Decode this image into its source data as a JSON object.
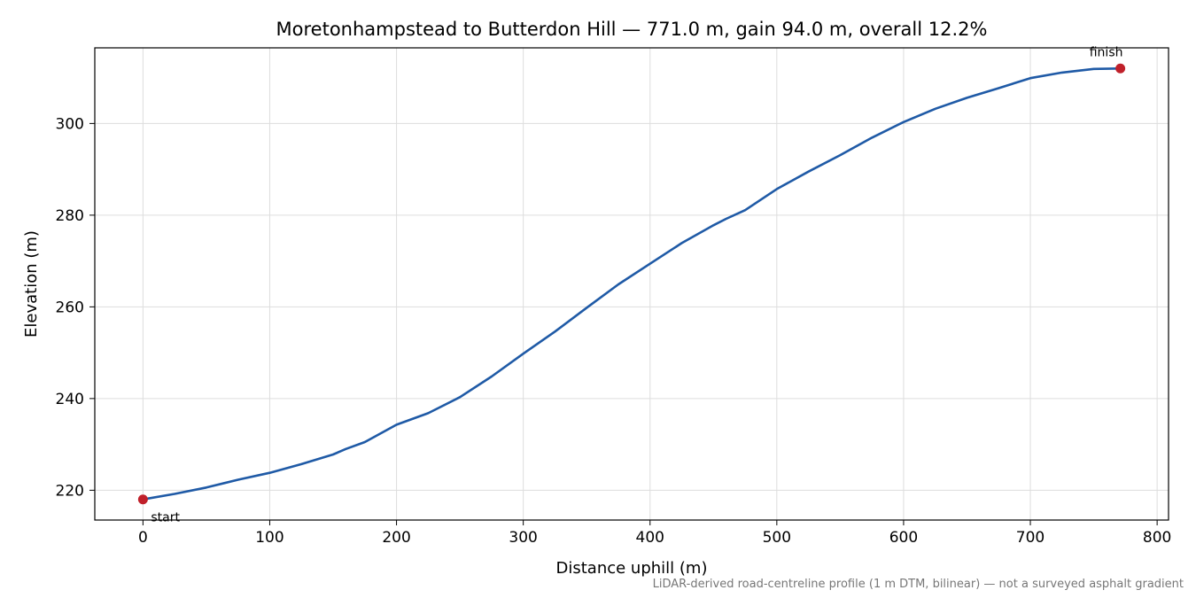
{
  "chart_data": {
    "type": "line",
    "title": "Moretonhampstead to Butterdon Hill — 771.0 m, gain 94.0 m, overall 12.2%",
    "xlabel": "Distance uphill (m)",
    "ylabel": "Elevation (m)",
    "xlim": [
      -38,
      809
    ],
    "ylim": [
      213.5,
      316.5
    ],
    "x_ticks": [
      0,
      100,
      200,
      300,
      400,
      500,
      600,
      700,
      800
    ],
    "y_ticks": [
      220,
      240,
      260,
      280,
      300
    ],
    "grid": true,
    "series": [
      {
        "color": "#1f5aa6",
        "x": [
          0,
          25,
          50,
          75,
          100,
          125,
          150,
          160,
          175,
          200,
          225,
          250,
          275,
          300,
          325,
          350,
          375,
          400,
          425,
          450,
          460,
          475,
          500,
          525,
          550,
          575,
          600,
          625,
          650,
          675,
          700,
          725,
          750,
          771
        ],
        "y": [
          218.0,
          219.2,
          220.6,
          222.3,
          223.8,
          225.7,
          227.8,
          229.0,
          230.5,
          234.3,
          236.8,
          240.3,
          244.8,
          249.8,
          254.6,
          259.8,
          264.9,
          269.4,
          273.9,
          277.8,
          279.2,
          281.1,
          285.7,
          289.5,
          293.1,
          296.9,
          300.3,
          303.2,
          305.6,
          307.7,
          309.9,
          311.1,
          311.9,
          312.0
        ]
      }
    ],
    "markers": [
      {
        "label": "start",
        "x": 0,
        "y": 218.0,
        "color": "#c0202a"
      },
      {
        "label": "finish",
        "x": 771,
        "y": 312.0,
        "color": "#c0202a"
      }
    ],
    "footnote": "LiDAR-derived road-centreline profile (1 m DTM, bilinear) — not a surveyed asphalt gradient"
  }
}
